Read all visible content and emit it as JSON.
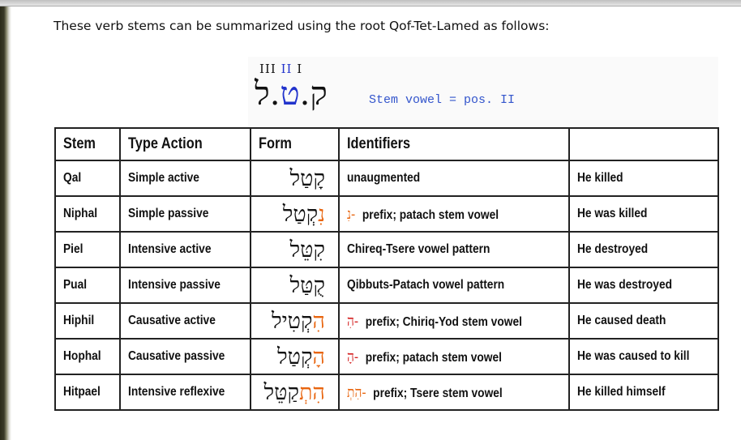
{
  "intro": "These verb stems can be summarized using the root Qof-Tet-Lamed as follows:",
  "root_diagram": {
    "positions": [
      "III",
      "II",
      "I"
    ],
    "root_letters": [
      "ק",
      "ט",
      "ל"
    ],
    "separator": ".",
    "stem_note": "Stem vowel = pos. II",
    "highlight_color": "#2233cc"
  },
  "table": {
    "headers": [
      "Stem",
      "Type Action",
      "Form",
      "Identifiers",
      ""
    ],
    "prefix_color": "#e8650f",
    "rows": [
      {
        "stem": "Qal",
        "type": "Simple active",
        "form_prefix": "",
        "form_rest": "קָטַל",
        "id_prefix": "",
        "identifier": "unaugmented",
        "meaning": "He killed"
      },
      {
        "stem": "Niphal",
        "type": "Simple passive",
        "form_prefix": "נִ",
        "form_rest": "קְטַל",
        "id_prefix": "-נִ",
        "identifier": "prefix; patach stem vowel",
        "meaning": "He was killed"
      },
      {
        "stem": "Piel",
        "type": "Intensive active",
        "form_prefix": "",
        "form_rest": "קִטֵּל",
        "id_prefix": "",
        "identifier": "Chireq-Tsere vowel pattern",
        "meaning": "He destroyed"
      },
      {
        "stem": "Pual",
        "type": "Intensive passive",
        "form_prefix": "",
        "form_rest": "קֻטַּל",
        "id_prefix": "",
        "identifier": "Qibbuts-Patach vowel pattern",
        "meaning": "He was destroyed"
      },
      {
        "stem": "Hiphil",
        "type": "Causative active",
        "form_prefix": "הִ",
        "form_rest": "קְטִיל",
        "id_prefix": "-הִ",
        "identifier": "prefix; Chiriq-Yod stem vowel",
        "meaning": "He caused death"
      },
      {
        "stem": "Hophal",
        "type": "Causative passive",
        "form_prefix": "הָ",
        "form_rest": "קְטַל",
        "id_prefix": "-הָ",
        "identifier": "prefix; patach stem vowel",
        "meaning": "He was caused to kill"
      },
      {
        "stem": "Hitpael",
        "type": "Intensive reflexive",
        "form_prefix": "הִתְ",
        "form_rest": "קַטֵּל",
        "id_prefix": "-הִתְ",
        "identifier": "prefix; Tsere stem vowel",
        "meaning": "He killed himself"
      }
    ]
  }
}
